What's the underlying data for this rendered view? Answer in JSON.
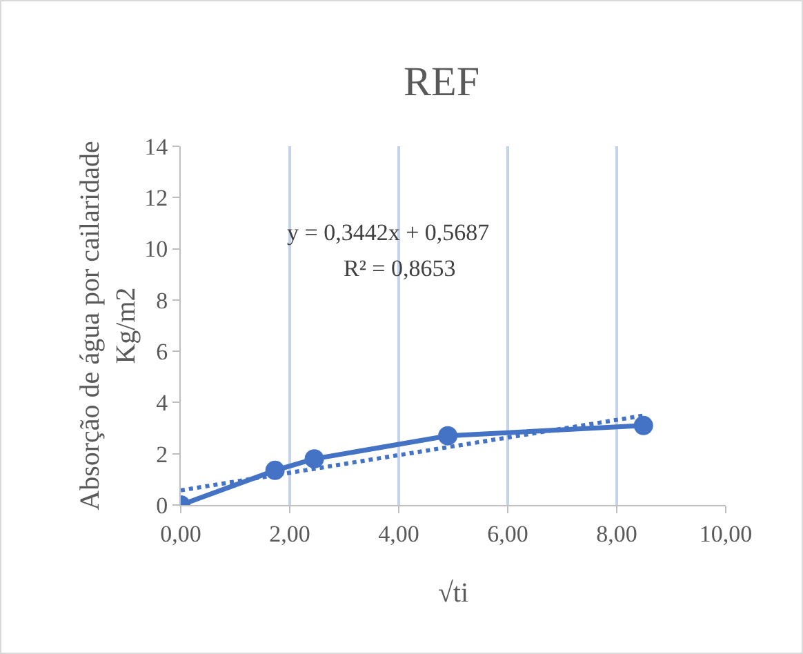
{
  "chart_data": {
    "type": "line",
    "title": "REF",
    "xlabel": "√ti",
    "ylabel": "Absorção de água por cailaridade\nKg/m2",
    "x": [
      0,
      1.73,
      2.45,
      4.9,
      8.49
    ],
    "series": [
      {
        "color": "#4472c4",
        "values": [
          0,
          1.35,
          1.8,
          2.7,
          3.1
        ],
        "marker": "circle",
        "line_style": "solid"
      },
      {
        "type": "line",
        "color": "#4472c4",
        "x": [
          0,
          8.49
        ],
        "values": [
          0.57,
          3.49
        ],
        "marker": "none",
        "line_style": "dotted"
      }
    ],
    "xlim": [
      0,
      10
    ],
    "xticks": [
      {
        "value": 0,
        "label": "0,00"
      },
      {
        "value": 2,
        "label": "2,00"
      },
      {
        "value": 4,
        "label": "4,00"
      },
      {
        "value": 6,
        "label": "6,00"
      },
      {
        "value": 8,
        "label": "8,00"
      },
      {
        "value": 10,
        "label": "10,00"
      }
    ],
    "ylim": [
      0,
      14
    ],
    "yticks": [
      0,
      2,
      4,
      6,
      8,
      10,
      12,
      14
    ],
    "grid": "x",
    "annotations": [
      "y = 0,3442x + 0,5687",
      "R² = 0,8653"
    ]
  }
}
